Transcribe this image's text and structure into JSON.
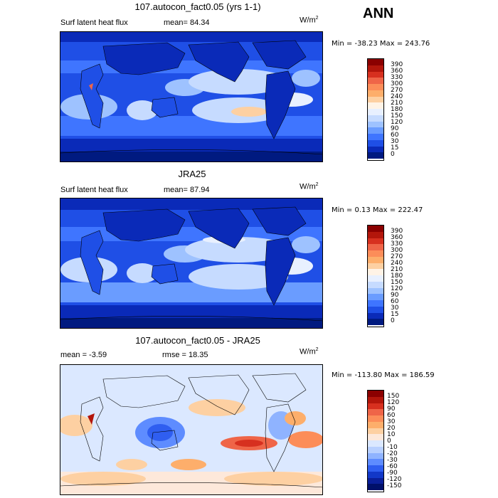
{
  "season": "ANN",
  "units": "W/m",
  "units_exp": "2",
  "panels": [
    {
      "title": "107.autocon_fact0.05 (yrs 1-1)",
      "left_text": "Surf latent heat flux",
      "stat_text": "mean=  84.34",
      "minmax": "Min = -38.23 Max = 243.76",
      "colorbar": {
        "labels": [
          "390",
          "360",
          "330",
          "300",
          "270",
          "240",
          "210",
          "180",
          "150",
          "120",
          "90",
          "60",
          "30",
          "15",
          "0"
        ],
        "colors": [
          "#8b0000",
          "#b3160b",
          "#d7301f",
          "#ef6548",
          "#fc8d59",
          "#fdae6b",
          "#fdd0a2",
          "#fff3e6",
          "#e8f0ff",
          "#c6dbff",
          "#9ec2ff",
          "#6a9cff",
          "#3f75ff",
          "#1f4fe6",
          "#0a2ab8",
          "#001a80"
        ]
      }
    },
    {
      "title": "JRA25",
      "left_text": "Surf latent heat flux",
      "stat_text": "mean=  87.94",
      "minmax": "Min =   0.13 Max = 222.47",
      "colorbar": {
        "labels": [
          "390",
          "360",
          "330",
          "300",
          "270",
          "240",
          "210",
          "180",
          "150",
          "120",
          "90",
          "60",
          "30",
          "15",
          "0"
        ],
        "colors": [
          "#8b0000",
          "#b3160b",
          "#d7301f",
          "#ef6548",
          "#fc8d59",
          "#fdae6b",
          "#fdd0a2",
          "#fff3e6",
          "#e8f0ff",
          "#c6dbff",
          "#9ec2ff",
          "#6a9cff",
          "#3f75ff",
          "#1f4fe6",
          "#0a2ab8",
          "#001a80"
        ]
      }
    },
    {
      "title": "107.autocon_fact0.05 - JRA25",
      "left_text": "mean =   -3.59",
      "stat_text": "rmse =   18.35",
      "minmax": "Min = -113.80 Max = 186.59",
      "colorbar": {
        "labels": [
          "150",
          "120",
          "90",
          "60",
          "30",
          "20",
          "10",
          "0",
          "-10",
          "-20",
          "-30",
          "-60",
          "-90",
          "-120",
          "-150"
        ],
        "colors": [
          "#8b0000",
          "#b3160b",
          "#d7301f",
          "#ef6548",
          "#fc8d59",
          "#fdae6b",
          "#fdd0a2",
          "#fde8da",
          "#dbe8ff",
          "#b8d0ff",
          "#8fb3ff",
          "#5e8cff",
          "#2f5ef0",
          "#1238c8",
          "#0a1f9a",
          "#00106a"
        ]
      }
    }
  ]
}
